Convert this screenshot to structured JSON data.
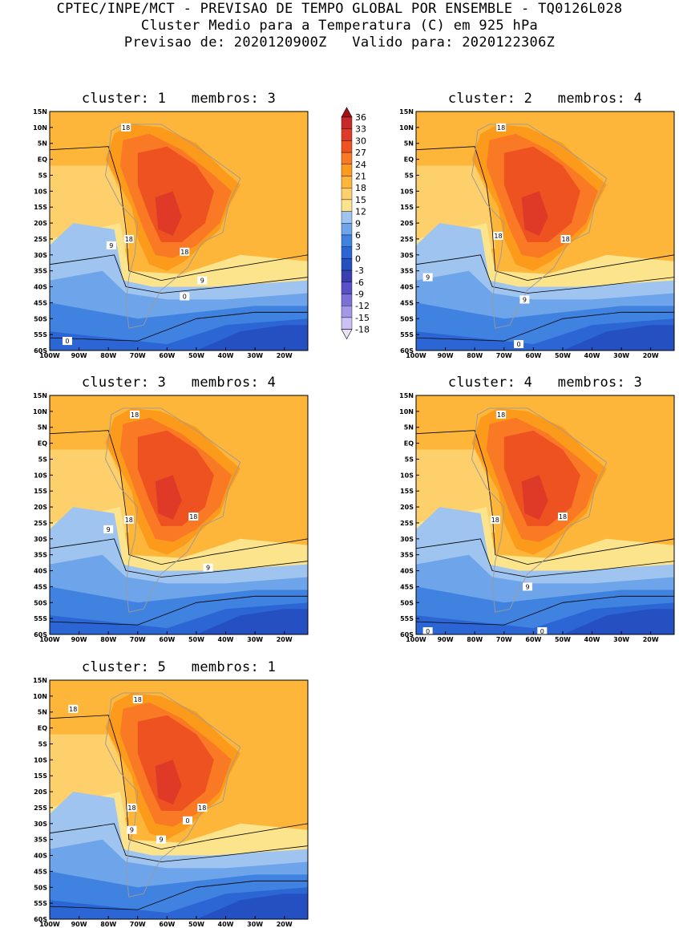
{
  "header": {
    "line1": "CPTEC/INPE/MCT - PREVISAO DE TEMPO GLOBAL POR ENSEMBLE - TQ0126L028",
    "line2": "Cluster Medio para a Temperatura (C) em 925 hPa",
    "line3": "Previsao de: 2020120900Z   Valido para: 2020122306Z"
  },
  "axes": {
    "lat_ticks": [
      "15N",
      "10N",
      "5N",
      "EQ",
      "5S",
      "10S",
      "15S",
      "20S",
      "25S",
      "30S",
      "35S",
      "40S",
      "45S",
      "50S",
      "55S",
      "60S"
    ],
    "lon_ticks": [
      "100W",
      "90W",
      "80W",
      "70W",
      "60W",
      "50W",
      "40W",
      "30W",
      "20W"
    ]
  },
  "panels": [
    {
      "title": "cluster: 1   membros: 3",
      "labels": [
        {
          "t": "18"
        },
        {
          "t": "18"
        },
        {
          "t": "18"
        },
        {
          "t": "9"
        },
        {
          "t": "9"
        },
        {
          "t": "0"
        },
        {
          "t": "0"
        }
      ]
    },
    {
      "title": "cluster: 2   membros: 4",
      "labels": [
        {
          "t": "18"
        },
        {
          "t": "18"
        },
        {
          "t": "18"
        },
        {
          "t": "9"
        },
        {
          "t": "9"
        },
        {
          "t": "0"
        }
      ]
    },
    {
      "title": "cluster: 3   membros: 4",
      "labels": [
        {
          "t": "18"
        },
        {
          "t": "18"
        },
        {
          "t": "18"
        },
        {
          "t": "9"
        },
        {
          "t": "9"
        }
      ]
    },
    {
      "title": "cluster: 4   membros: 3",
      "labels": [
        {
          "t": "18"
        },
        {
          "t": "18"
        },
        {
          "t": "18"
        },
        {
          "t": "9"
        },
        {
          "t": "0"
        },
        {
          "t": "0"
        }
      ]
    },
    {
      "title": "cluster: 5   membros: 1",
      "labels": [
        {
          "t": "18"
        },
        {
          "t": "18"
        },
        {
          "t": "18"
        },
        {
          "t": "18"
        },
        {
          "t": "9"
        },
        {
          "t": "9"
        },
        {
          "t": "0"
        }
      ]
    }
  ],
  "colorbar": {
    "levels": [
      "36",
      "33",
      "30",
      "27",
      "24",
      "21",
      "18",
      "15",
      "12",
      "9",
      "6",
      "3",
      "0",
      "-3",
      "-6",
      "-9",
      "-12",
      "-15",
      "-18"
    ],
    "colors": [
      "#a50f15",
      "#c62a2a",
      "#de3a27",
      "#ee5221",
      "#f97924",
      "#fc9a1c",
      "#fdb53a",
      "#fdd06b",
      "#fce48c",
      "#9fc4f0",
      "#6da4ea",
      "#3f82e0",
      "#2b66d4",
      "#2450c2",
      "#3a3eb0",
      "#5a50c8",
      "#7b6fd8",
      "#a497e6",
      "#cbc1f2",
      "#e8e1fa"
    ]
  }
}
